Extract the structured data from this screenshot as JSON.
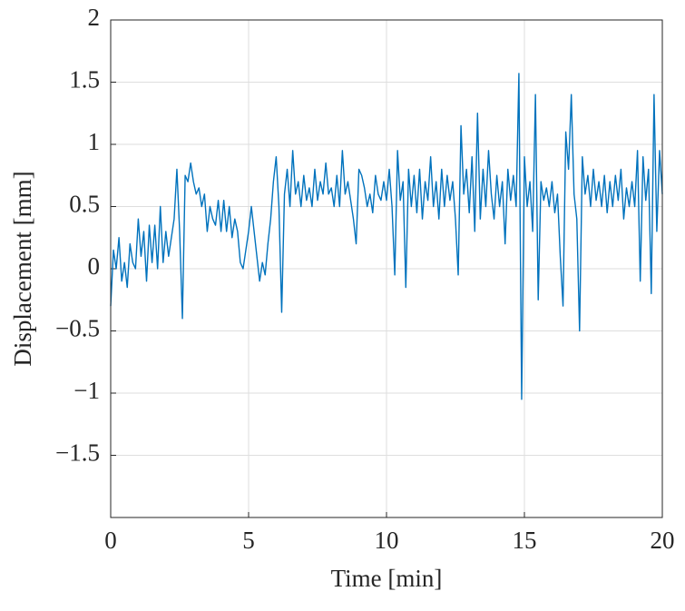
{
  "chart_data": {
    "type": "line",
    "xlabel": "Time [min]",
    "ylabel": "Displacement [mm]",
    "x": [
      0,
      0.1,
      0.2,
      0.3,
      0.4,
      0.5,
      0.6,
      0.7,
      0.8,
      0.9,
      1,
      1.1,
      1.2,
      1.3,
      1.4,
      1.5,
      1.6,
      1.7,
      1.8,
      1.9,
      2,
      2.1,
      2.2,
      2.3,
      2.4,
      2.5,
      2.6,
      2.7,
      2.8,
      2.9,
      3,
      3.1,
      3.2,
      3.3,
      3.4,
      3.5,
      3.6,
      3.7,
      3.8,
      3.9,
      4,
      4.1,
      4.2,
      4.3,
      4.4,
      4.5,
      4.6,
      4.7,
      4.8,
      4.9,
      5,
      5.1,
      5.2,
      5.3,
      5.4,
      5.5,
      5.6,
      5.7,
      5.8,
      5.9,
      6,
      6.1,
      6.2,
      6.3,
      6.4,
      6.5,
      6.6,
      6.7,
      6.8,
      6.9,
      7,
      7.1,
      7.2,
      7.3,
      7.4,
      7.5,
      7.6,
      7.7,
      7.8,
      7.9,
      8,
      8.1,
      8.2,
      8.3,
      8.4,
      8.5,
      8.6,
      8.7,
      8.8,
      8.9,
      9,
      9.1,
      9.2,
      9.3,
      9.4,
      9.5,
      9.6,
      9.7,
      9.8,
      9.9,
      10,
      10.1,
      10.2,
      10.3,
      10.4,
      10.5,
      10.6,
      10.7,
      10.8,
      10.9,
      11,
      11.1,
      11.2,
      11.3,
      11.4,
      11.5,
      11.6,
      11.7,
      11.8,
      11.9,
      12,
      12.1,
      12.2,
      12.3,
      12.4,
      12.5,
      12.6,
      12.7,
      12.8,
      12.9,
      13,
      13.1,
      13.2,
      13.3,
      13.4,
      13.5,
      13.6,
      13.7,
      13.8,
      13.9,
      14,
      14.1,
      14.2,
      14.3,
      14.4,
      14.5,
      14.6,
      14.7,
      14.8,
      14.9,
      15,
      15.1,
      15.2,
      15.3,
      15.4,
      15.5,
      15.6,
      15.7,
      15.8,
      15.9,
      16,
      16.1,
      16.2,
      16.3,
      16.4,
      16.5,
      16.6,
      16.7,
      16.8,
      16.9,
      17,
      17.1,
      17.2,
      17.3,
      17.4,
      17.5,
      17.6,
      17.7,
      17.8,
      17.9,
      18,
      18.1,
      18.2,
      18.3,
      18.4,
      18.5,
      18.6,
      18.7,
      18.8,
      18.9,
      19,
      19.1,
      19.2,
      19.3,
      19.4,
      19.5,
      19.6,
      19.7,
      19.8,
      19.9,
      20
    ],
    "values": [
      -0.3,
      0.15,
      0,
      0.25,
      -0.1,
      0.05,
      -0.15,
      0.2,
      0.05,
      0,
      0.4,
      0.1,
      0.3,
      -0.1,
      0.35,
      0.05,
      0.35,
      0,
      0.5,
      0.05,
      0.3,
      0.1,
      0.25,
      0.4,
      0.8,
      0.3,
      -0.4,
      0.75,
      0.7,
      0.85,
      0.7,
      0.6,
      0.65,
      0.5,
      0.6,
      0.3,
      0.5,
      0.4,
      0.35,
      0.55,
      0.3,
      0.55,
      0.3,
      0.5,
      0.25,
      0.4,
      0.3,
      0.05,
      0,
      0.15,
      0.3,
      0.5,
      0.3,
      0.1,
      -0.1,
      0.05,
      -0.05,
      0.2,
      0.4,
      0.7,
      0.9,
      0.5,
      -0.35,
      0.6,
      0.8,
      0.5,
      0.95,
      0.6,
      0.7,
      0.5,
      0.75,
      0.55,
      0.65,
      0.5,
      0.8,
      0.55,
      0.7,
      0.6,
      0.85,
      0.6,
      0.65,
      0.5,
      0.75,
      0.5,
      0.95,
      0.6,
      0.7,
      0.55,
      0.4,
      0.2,
      0.8,
      0.75,
      0.65,
      0.5,
      0.6,
      0.45,
      0.75,
      0.6,
      0.55,
      0.7,
      0.55,
      0.8,
      0.5,
      -0.05,
      0.95,
      0.55,
      0.7,
      -0.15,
      0.8,
      0.5,
      0.75,
      0.45,
      0.8,
      0.4,
      0.7,
      0.55,
      0.9,
      0.5,
      0.7,
      0.4,
      0.8,
      0.5,
      0.75,
      0.55,
      0.7,
      0.4,
      -0.05,
      1.15,
      0.6,
      0.8,
      0.45,
      0.9,
      0.3,
      1.25,
      0.4,
      0.8,
      0.5,
      0.95,
      0.6,
      0.4,
      0.75,
      0.5,
      0.7,
      0.2,
      0.8,
      0.55,
      0.75,
      0.5,
      1.57,
      -1.05,
      0.9,
      0.5,
      0.7,
      0.3,
      1.4,
      -0.25,
      0.7,
      0.55,
      0.65,
      0.5,
      0.7,
      0.45,
      0.6,
      0.1,
      -0.3,
      1.1,
      0.8,
      1.4,
      0.6,
      0.4,
      -0.5,
      0.9,
      0.6,
      0.75,
      0.5,
      0.8,
      0.55,
      0.7,
      0.5,
      0.75,
      0.45,
      0.7,
      0.5,
      0.75,
      0.55,
      0.8,
      0.4,
      0.65,
      0.5,
      0.7,
      0.5,
      0.95,
      -0.1,
      0.9,
      0.55,
      0.8,
      -0.2,
      1.4,
      0.3,
      0.95,
      0.6
    ],
    "color": "#0072bd",
    "xlim": [
      0,
      20
    ],
    "xticks": [
      0,
      5,
      10,
      15,
      20
    ],
    "ylim": [
      -2,
      2
    ],
    "yticks": [
      {
        "value": -1.5,
        "label": "−1.5"
      },
      {
        "value": -1,
        "label": "−1"
      },
      {
        "value": -0.5,
        "label": "−0.5"
      },
      0,
      0.5,
      1,
      1.5,
      2
    ],
    "grid": true
  }
}
